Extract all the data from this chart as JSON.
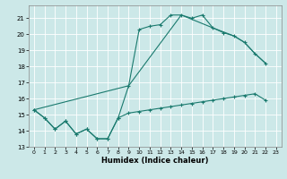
{
  "xlabel": "Humidex (Indice chaleur)",
  "bg_color": "#cce8e8",
  "grid_color": "#ffffff",
  "line_color": "#1a7a6e",
  "xlim": [
    -0.5,
    23.5
  ],
  "ylim": [
    13,
    21.8
  ],
  "xticks": [
    0,
    1,
    2,
    3,
    4,
    5,
    6,
    7,
    8,
    9,
    10,
    11,
    12,
    13,
    14,
    15,
    16,
    17,
    18,
    19,
    20,
    21,
    22,
    23
  ],
  "yticks": [
    13,
    14,
    15,
    16,
    17,
    18,
    19,
    20,
    21
  ],
  "line1_x": [
    0,
    1,
    2,
    3,
    4,
    5,
    6,
    7,
    8,
    9,
    10,
    11,
    12,
    13,
    14,
    15,
    16,
    17,
    18,
    19,
    20,
    21,
    22
  ],
  "line1_y": [
    15.3,
    14.8,
    14.1,
    14.6,
    13.8,
    14.1,
    13.5,
    13.5,
    14.8,
    16.8,
    20.3,
    20.5,
    20.6,
    21.2,
    21.2,
    21.0,
    21.2,
    20.4,
    20.1,
    19.9,
    19.5,
    18.8,
    18.2
  ],
  "line2_x": [
    0,
    9,
    14,
    17,
    19,
    20,
    21,
    22
  ],
  "line2_y": [
    15.3,
    16.8,
    21.2,
    20.4,
    19.9,
    19.5,
    18.8,
    18.2
  ],
  "line3_x": [
    0,
    1,
    2,
    3,
    4,
    5,
    6,
    7,
    8,
    9,
    10,
    11,
    12,
    13,
    14,
    15,
    16,
    17,
    18,
    19,
    20,
    21,
    22
  ],
  "line3_y": [
    15.3,
    14.8,
    14.1,
    14.6,
    13.8,
    14.1,
    13.5,
    13.5,
    14.8,
    15.1,
    15.2,
    15.3,
    15.4,
    15.5,
    15.6,
    15.7,
    15.8,
    15.9,
    16.0,
    16.1,
    16.2,
    16.3,
    15.9
  ]
}
